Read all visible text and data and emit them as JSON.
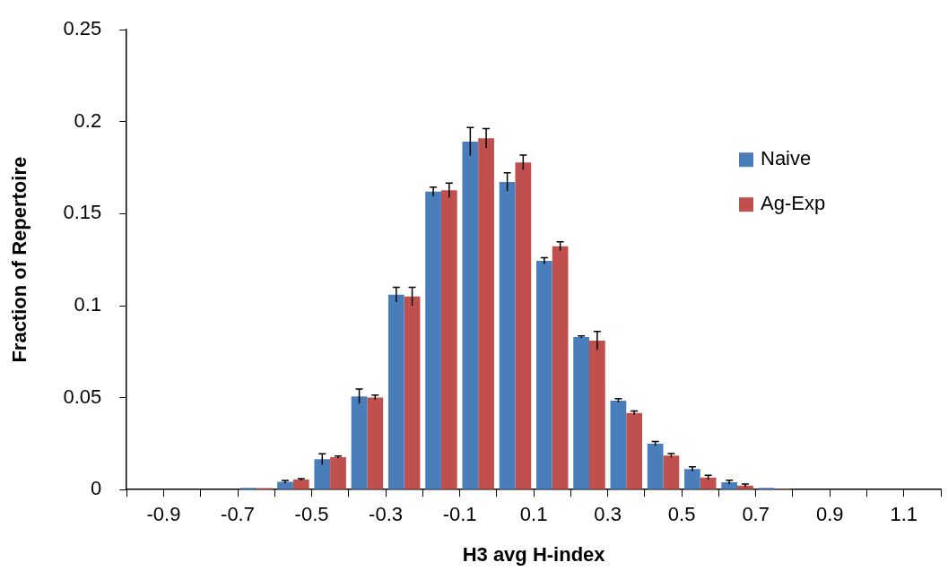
{
  "chart_data": {
    "type": "histogram",
    "xlabel": "H3 avg H-index",
    "ylabel": "Fraction of Repertoire",
    "bins": [
      -1.0,
      -0.9,
      -0.8,
      -0.7,
      -0.6,
      -0.5,
      -0.4,
      -0.3,
      -0.2,
      -0.1,
      0.0,
      0.1,
      0.2,
      0.3,
      0.4,
      0.5,
      0.6,
      0.7,
      0.8,
      0.9,
      1.0,
      1.1,
      1.2
    ],
    "series": [
      {
        "name": "Naive",
        "color": "#4a7ebb",
        "values": [
          0,
          0,
          0,
          0.001,
          0.0042,
          0.0165,
          0.0507,
          0.106,
          0.162,
          0.1892,
          0.1673,
          0.1244,
          0.083,
          0.0484,
          0.025,
          0.0112,
          0.004,
          0.001,
          null,
          0,
          0,
          0
        ],
        "errors": [
          null,
          null,
          null,
          null,
          0.0008,
          0.003,
          0.004,
          0.004,
          0.0025,
          0.0076,
          0.005,
          0.0017,
          0.0005,
          0.001,
          0.0012,
          0.0012,
          0.0011,
          null,
          null,
          null,
          null,
          null
        ]
      },
      {
        "name": "Ag-Exp",
        "color": "#c0504d",
        "values": [
          0,
          0,
          0,
          0.0008,
          0.0054,
          0.0176,
          0.0501,
          0.105,
          0.1627,
          0.191,
          0.1779,
          0.1323,
          0.081,
          0.0417,
          0.0185,
          0.0066,
          0.0022,
          0.0005,
          0,
          0,
          0,
          0
        ],
        "errors": [
          null,
          null,
          null,
          null,
          0.0006,
          0.0006,
          0.0013,
          0.005,
          0.004,
          0.0053,
          0.004,
          0.0024,
          0.005,
          0.001,
          0.0011,
          0.0012,
          0.0008,
          null,
          null,
          null,
          null,
          null
        ]
      }
    ],
    "xlim": [
      -1.0,
      1.2
    ],
    "xticks": [
      {
        "value": -1.0,
        "label": null
      },
      -0.9,
      {
        "value": -0.8,
        "label": null
      },
      -0.7,
      {
        "value": -0.6,
        "label": null
      },
      -0.5,
      {
        "value": -0.4,
        "label": null
      },
      -0.3,
      {
        "value": -0.2,
        "label": null
      },
      -0.1,
      {
        "value": 0.0,
        "label": null
      },
      0.1,
      {
        "value": 0.2,
        "label": null
      },
      0.3,
      {
        "value": 0.4,
        "label": null
      },
      0.5,
      {
        "value": 0.6,
        "label": null
      },
      0.7,
      {
        "value": 0.8,
        "label": null
      },
      0.9,
      {
        "value": 1.0,
        "label": null
      },
      1.1,
      {
        "value": 1.2,
        "label": null
      }
    ],
    "ylim": [
      0,
      0.25
    ],
    "yticks": [
      0,
      0.05,
      0.1,
      0.15,
      0.2,
      0.25
    ],
    "grid": false,
    "legend": "right"
  }
}
